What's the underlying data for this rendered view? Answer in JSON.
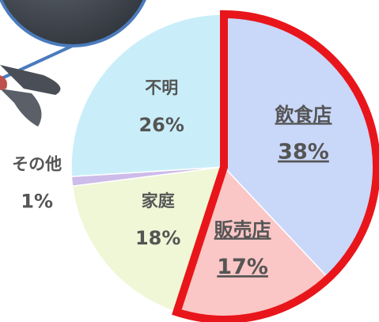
{
  "chart_data": {
    "type": "pie",
    "categories": [
      "飲食店",
      "販売店",
      "家庭",
      "その他",
      "不明"
    ],
    "values": [
      38,
      17,
      18,
      1,
      26
    ],
    "value_labels": [
      "38%",
      "17%",
      "18%",
      "1%",
      "26%"
    ],
    "colors": [
      "#c9d7f9",
      "#fbc6c6",
      "#eff7d6",
      "#cdbbe9",
      "#c9eefa"
    ],
    "highlighted": [
      true,
      true,
      false,
      false,
      false
    ],
    "highlight_color": "#e8161b"
  }
}
